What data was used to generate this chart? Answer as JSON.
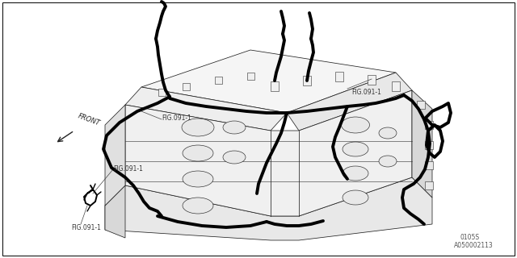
{
  "background_color": "#ffffff",
  "border_color": "#000000",
  "fig_width": 6.4,
  "fig_height": 3.2,
  "dpi": 100,
  "labels": {
    "front": "FRONT",
    "fig1_top_left": "FIG.091-1",
    "fig1_top_right": "FIG.091-1",
    "fig1_mid_left": "FIG.091-1",
    "fig1_bot_left": "FIG.091-1",
    "code1": "0105S",
    "code2": "A050002113"
  },
  "font_size_label": 5.5,
  "font_size_code": 5.5,
  "wire_color": "#000000",
  "wire_linewidth": 2.8,
  "engine_linewidth": 0.55,
  "engine_color": "#ffffff",
  "engine_edge_color": "#222222"
}
